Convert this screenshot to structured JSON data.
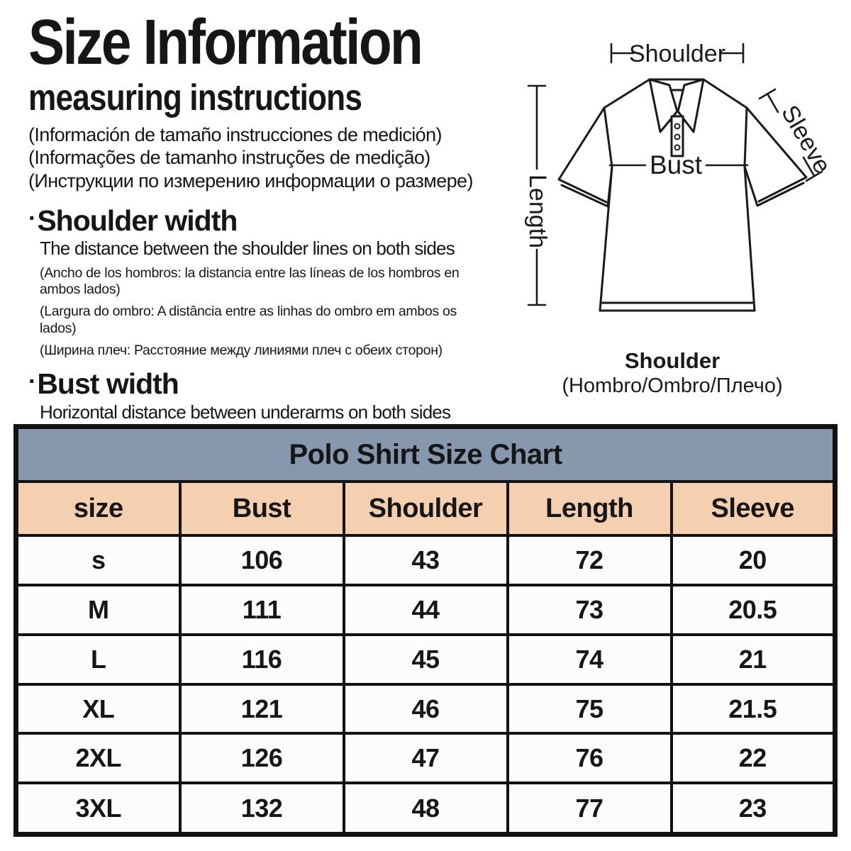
{
  "page": {
    "title": "Size Information",
    "subtitle": "measuring instructions",
    "title_translations": [
      "(Información de tamaño instrucciones de medición)",
      "(Informações de tamanho instruções de medição)",
      "(Инструкции по измерению информации о размере)"
    ],
    "bullet": "·",
    "sections": [
      {
        "heading": "Shoulder width",
        "description": "The distance between the shoulder lines on both sides",
        "translations": [
          "(Ancho de los hombros: la distancia entre las líneas de los hombros en\nambos lados)",
          "(Largura do ombro: A distância entre as linhas do ombro em ambos os\nlados)",
          "(Ширина плеч: Расстояние между линиями плеч с обеих сторон)"
        ]
      },
      {
        "heading": "Bust width",
        "description": "Horizontal distance between underarms on both sides"
      }
    ]
  },
  "diagram": {
    "labels": {
      "shoulder": "Shoulder",
      "length": "Length",
      "sleeve": "Sleeve",
      "bust": "Bust"
    },
    "caption": {
      "title": "Shoulder",
      "subtitle": "(Hombro/Ombro/Плечо)"
    }
  },
  "chart_data": {
    "type": "table",
    "title": "Polo Shirt Size Chart",
    "columns": [
      "size",
      "Bust",
      "Shoulder",
      "Length",
      "Sleeve"
    ],
    "rows": [
      [
        "s",
        "106",
        "43",
        "72",
        "20"
      ],
      [
        "M",
        "111",
        "44",
        "73",
        "20.5"
      ],
      [
        "L",
        "116",
        "45",
        "74",
        "21"
      ],
      [
        "XL",
        "121",
        "46",
        "75",
        "21.5"
      ],
      [
        "2XL",
        "126",
        "47",
        "76",
        "22"
      ],
      [
        "3XL",
        "132",
        "48",
        "77",
        "23"
      ]
    ],
    "colors": {
      "title_bg": "#8697ae",
      "header_bg": "#f4d0b0",
      "row_bg": "#fcfcfc",
      "border": "#121212",
      "text": "#161616"
    }
  }
}
